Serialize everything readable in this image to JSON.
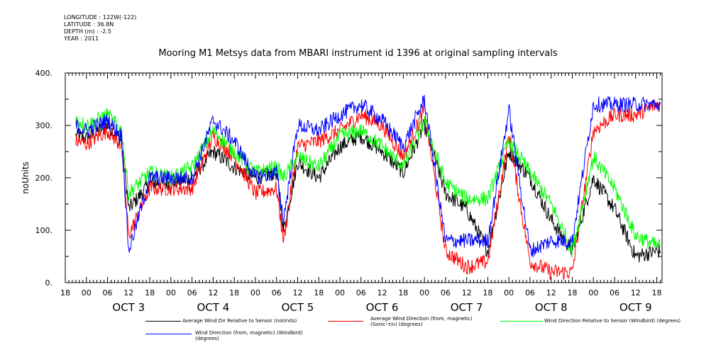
{
  "meta_lines": [
    "LONGITUDE : 122W(-122)",
    "LATITUDE : 36.8N",
    "DEPTH (m) : -2.5",
    "YEAR : 2011"
  ],
  "chart_data": {
    "type": "line",
    "title": "Mooring M1 Metsys data from MBARI instrument id 1396 at original sampling intervals",
    "ylabel": "noUnits",
    "xlabel": "",
    "ylim": [
      0,
      400
    ],
    "yticks": [
      0,
      100,
      200,
      300,
      400
    ],
    "ytick_labels": [
      "0.",
      "100.",
      "200.",
      "300.",
      "400."
    ],
    "x_range_hours": [
      -6,
      19.5
    ],
    "x_hour_tick_labels": [
      "00",
      "06",
      "12",
      "18"
    ],
    "day_labels": [
      "OCT  3",
      "OCT  4",
      "OCT  5",
      "OCT  6",
      "OCT  7",
      "OCT  8",
      "OCT  9"
    ],
    "colors": {
      "black": "#000000",
      "red": "#ff0000",
      "green": "#00ff00",
      "blue": "#0000ff"
    },
    "legend": [
      {
        "name": "Average Wind Dir Relative to Sensor (noUnits)",
        "color": "#000000"
      },
      {
        "name": "Average Wind Direction (from, magnetic) (Sonic-τ/υ) (degrees)",
        "color": "#ff0000"
      },
      {
        "name": "Wind Direction Relative to Sensor (Windbird) (degrees)",
        "color": "#00ff00"
      },
      {
        "name": "Wind Direction (from, magnetic) (Windbird) (degrees)",
        "color": "#0000ff"
      }
    ],
    "series": [
      {
        "color": "#000000",
        "x": [
          "Oct 2 21:00",
          "Oct 3 00:00",
          "Oct 3 06:00",
          "Oct 3 10:00",
          "Oct 3 12:00",
          "Oct 3 18:00",
          "Oct 4 00:00",
          "Oct 4 06:00",
          "Oct 4 12:00",
          "Oct 4 18:00",
          "Oct 5 00:00",
          "Oct 5 06:00",
          "Oct 5 08:00",
          "Oct 5 12:00",
          "Oct 5 18:00",
          "Oct 6 00:00",
          "Oct 6 06:00",
          "Oct 6 12:00",
          "Oct 6 18:00",
          "Oct 7 00:00",
          "Oct 7 06:00",
          "Oct 7 12:00",
          "Oct 7 18:00",
          "Oct 8 00:00",
          "Oct 8 06:00",
          "Oct 8 12:00",
          "Oct 8 18:00",
          "Oct 9 00:00",
          "Oct 9 06:00",
          "Oct 9 12:00",
          "Oct 9 18:00",
          "Oct 9 19:00"
        ],
        "y": [
          280,
          275,
          300,
          270,
          140,
          190,
          190,
          200,
          250,
          220,
          200,
          210,
          100,
          230,
          200,
          260,
          280,
          250,
          210,
          300,
          170,
          140,
          60,
          250,
          200,
          120,
          60,
          200,
          140,
          50,
          60,
          60
        ]
      },
      {
        "color": "#ff0000",
        "x": [
          "Oct 2 21:00",
          "Oct 3 00:00",
          "Oct 3 06:00",
          "Oct 3 10:00",
          "Oct 3 12:00",
          "Oct 3 18:00",
          "Oct 4 00:00",
          "Oct 4 06:00",
          "Oct 4 12:00",
          "Oct 4 18:00",
          "Oct 5 00:00",
          "Oct 5 06:00",
          "Oct 5 08:00",
          "Oct 5 12:00",
          "Oct 5 18:00",
          "Oct 6 00:00",
          "Oct 6 06:00",
          "Oct 6 12:00",
          "Oct 6 18:00",
          "Oct 7 00:00",
          "Oct 7 06:00",
          "Oct 7 12:00",
          "Oct 7 18:00",
          "Oct 8 00:00",
          "Oct 8 06:00",
          "Oct 8 12:00",
          "Oct 8 18:00",
          "Oct 9 00:00",
          "Oct 9 06:00",
          "Oct 9 12:00",
          "Oct 9 18:00",
          "Oct 9 19:00"
        ],
        "y": [
          270,
          265,
          290,
          260,
          90,
          180,
          180,
          180,
          280,
          240,
          170,
          180,
          80,
          260,
          270,
          290,
          320,
          300,
          240,
          330,
          60,
          30,
          40,
          280,
          40,
          20,
          20,
          290,
          320,
          320,
          340,
          340
        ]
      },
      {
        "color": "#00ff00",
        "x": [
          "Oct 2 21:00",
          "Oct 3 00:00",
          "Oct 3 06:00",
          "Oct 3 10:00",
          "Oct 3 12:00",
          "Oct 3 18:00",
          "Oct 4 00:00",
          "Oct 4 06:00",
          "Oct 4 12:00",
          "Oct 4 18:00",
          "Oct 5 00:00",
          "Oct 5 06:00",
          "Oct 5 08:00",
          "Oct 5 12:00",
          "Oct 5 18:00",
          "Oct 6 00:00",
          "Oct 6 06:00",
          "Oct 6 12:00",
          "Oct 6 18:00",
          "Oct 7 00:00",
          "Oct 7 06:00",
          "Oct 7 12:00",
          "Oct 7 18:00",
          "Oct 8 00:00",
          "Oct 8 06:00",
          "Oct 8 12:00",
          "Oct 8 18:00",
          "Oct 9 00:00",
          "Oct 9 06:00",
          "Oct 9 12:00",
          "Oct 9 18:00",
          "Oct 9 19:00"
        ],
        "y": [
          310,
          300,
          320,
          290,
          170,
          210,
          200,
          220,
          290,
          250,
          210,
          220,
          200,
          240,
          220,
          280,
          290,
          260,
          220,
          310,
          190,
          160,
          160,
          270,
          210,
          150,
          60,
          240,
          180,
          90,
          70,
          70
        ]
      },
      {
        "color": "#0000ff",
        "x": [
          "Oct 2 21:00",
          "Oct 3 00:00",
          "Oct 3 06:00",
          "Oct 3 10:00",
          "Oct 3 12:00",
          "Oct 3 18:00",
          "Oct 4 00:00",
          "Oct 4 06:00",
          "Oct 4 12:00",
          "Oct 4 18:00",
          "Oct 5 00:00",
          "Oct 5 06:00",
          "Oct 5 08:00",
          "Oct 5 12:00",
          "Oct 5 18:00",
          "Oct 6 00:00",
          "Oct 6 06:00",
          "Oct 6 12:00",
          "Oct 6 18:00",
          "Oct 7 00:00",
          "Oct 7 06:00",
          "Oct 7 12:00",
          "Oct 7 18:00",
          "Oct 8 00:00",
          "Oct 8 06:00",
          "Oct 8 12:00",
          "Oct 8 18:00",
          "Oct 9 00:00",
          "Oct 9 06:00",
          "Oct 9 12:00",
          "Oct 9 18:00",
          "Oct 9 19:00"
        ],
        "y": [
          300,
          290,
          310,
          280,
          60,
          200,
          200,
          200,
          310,
          270,
          200,
          210,
          120,
          300,
          290,
          320,
          340,
          310,
          260,
          350,
          80,
          80,
          80,
          330,
          60,
          80,
          80,
          340,
          340,
          340,
          340,
          340
        ]
      }
    ]
  }
}
